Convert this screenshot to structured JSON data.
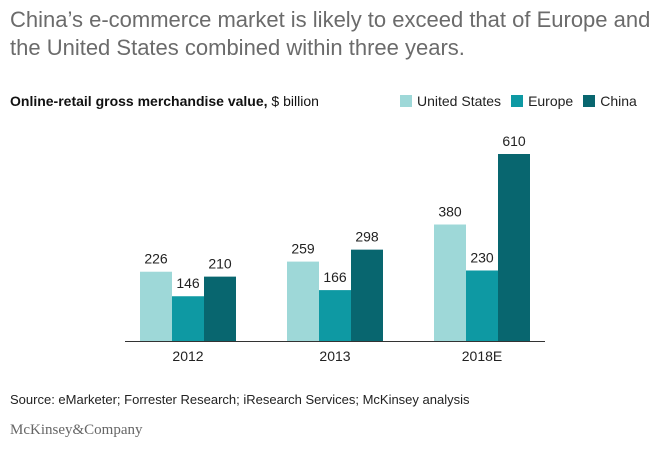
{
  "headline": "China’s e-commerce market is likely to exceed that of Europe and the United States combined within three years.",
  "subtitle_bold": "Online-retail gross merchandise value,",
  "subtitle_unit": " $ billion",
  "source": "Source: eMarketer; Forrester Research; iResearch Services; McKinsey analysis",
  "brand": "McKinsey&Company",
  "chart_data": {
    "type": "bar",
    "title": "Online-retail gross merchandise value, $ billion",
    "categories": [
      "2012",
      "2013",
      "2018E"
    ],
    "series": [
      {
        "name": "United States",
        "color": "#9ed8d8",
        "values": [
          226,
          259,
          380
        ]
      },
      {
        "name": "Europe",
        "color": "#0e99a3",
        "values": [
          146,
          166,
          230
        ]
      },
      {
        "name": "China",
        "color": "#08666f",
        "values": [
          210,
          298,
          610
        ]
      }
    ],
    "xlabel": "",
    "ylabel": "",
    "ylim": [
      0,
      610
    ],
    "grid": false,
    "legend": "top-right"
  }
}
